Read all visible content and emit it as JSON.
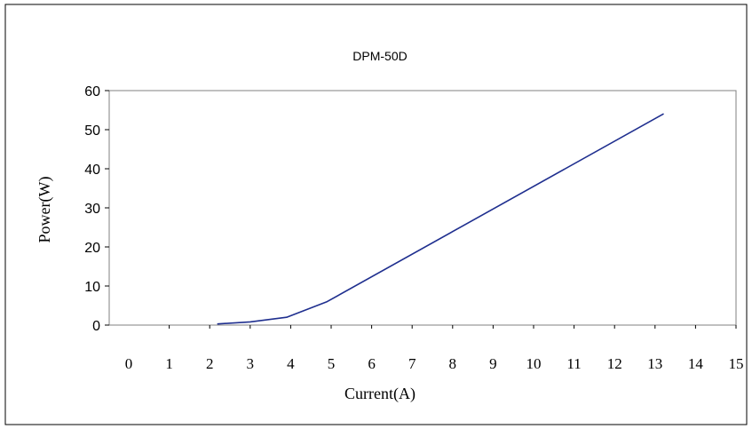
{
  "chart_data": {
    "type": "line",
    "title": "DPM-50D",
    "xlabel": "Current(A)",
    "ylabel": "Power(W)",
    "x_categories": [
      "0",
      "1",
      "2",
      "3",
      "4",
      "5",
      "6",
      "7",
      "8",
      "9",
      "10",
      "11",
      "12",
      "13",
      "14",
      "15"
    ],
    "y_ticks": [
      "0",
      "10",
      "20",
      "30",
      "40",
      "50",
      "60"
    ],
    "ylim": [
      0,
      60
    ],
    "grid": false,
    "series": [
      {
        "x": [
          2.2,
          3.0,
          3.9,
          4.9,
          13.2
        ],
        "y": [
          0.3,
          0.8,
          2.0,
          6.0,
          54.0
        ],
        "color": "#1f2f8f"
      }
    ]
  }
}
